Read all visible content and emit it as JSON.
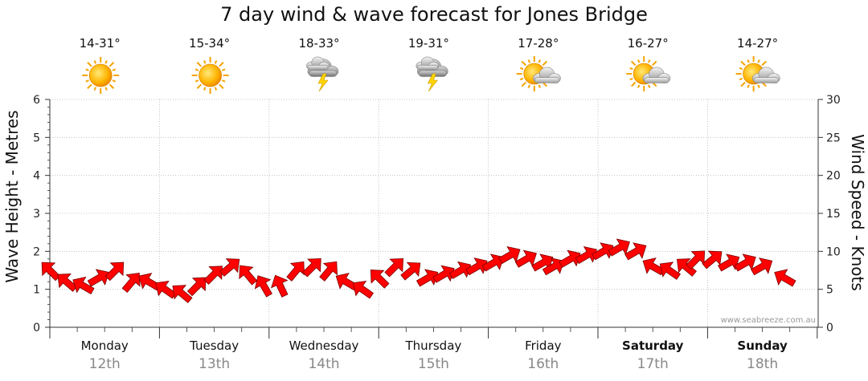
{
  "chart_data": {
    "type": "line",
    "title": "7 day wind & wave forecast for Jones Bridge",
    "ylabel": "Wave Height - Metres",
    "y2label": "Wind Speed - Knots",
    "ylim": [
      0,
      6
    ],
    "y2lim": [
      0,
      30
    ],
    "yticks": [
      "0",
      "1",
      "2",
      "3",
      "4",
      "5",
      "6"
    ],
    "y2ticks": [
      "0",
      "5",
      "10",
      "15",
      "20",
      "25",
      "30"
    ],
    "grid": true,
    "days": [
      {
        "name": "Monday",
        "date": "12th",
        "temp": "14-31°",
        "icon": "sun-icon",
        "bold": false
      },
      {
        "name": "Tuesday",
        "date": "13th",
        "temp": "15-34°",
        "icon": "sun-icon",
        "bold": false
      },
      {
        "name": "Wednesday",
        "date": "14th",
        "temp": "18-33°",
        "icon": "storm-icon",
        "bold": false
      },
      {
        "name": "Thursday",
        "date": "15th",
        "temp": "19-31°",
        "icon": "storm-icon",
        "bold": false
      },
      {
        "name": "Friday",
        "date": "16th",
        "temp": "17-28°",
        "icon": "partly-cloudy-icon",
        "bold": false
      },
      {
        "name": "Saturday",
        "date": "17th",
        "temp": "16-27°",
        "icon": "partly-cloudy-icon",
        "bold": true
      },
      {
        "name": "Sunday",
        "date": "18th",
        "temp": "14-27°",
        "icon": "partly-cloudy-icon",
        "bold": true
      }
    ],
    "series": [
      {
        "name": "Wind Speed (knots)",
        "axis": "right",
        "color": "#ff0000",
        "x_days": [
          0.0,
          0.15,
          0.3,
          0.45,
          0.6,
          0.75,
          0.9,
          1.05,
          1.2,
          1.35,
          1.5,
          1.65,
          1.8,
          1.95,
          2.1,
          2.25,
          2.4,
          2.55,
          2.7,
          2.85,
          3.0,
          3.15,
          3.3,
          3.45,
          3.6,
          3.75,
          3.9,
          4.05,
          4.2,
          4.35,
          4.5,
          4.6,
          4.75,
          4.9,
          5.05,
          5.2,
          5.35,
          5.5,
          5.65,
          5.8,
          5.9,
          6.05,
          6.2,
          6.35,
          6.5,
          6.7
        ],
        "values": [
          7.5,
          6.0,
          5.5,
          6.5,
          7.5,
          6.0,
          6.0,
          5.0,
          4.5,
          5.5,
          7.0,
          8.0,
          7.0,
          5.5,
          5.5,
          7.5,
          8.0,
          7.5,
          6.0,
          5.0,
          6.5,
          8.0,
          7.5,
          6.5,
          7.0,
          7.5,
          8.0,
          8.5,
          9.5,
          9.0,
          8.5,
          8.0,
          9.0,
          9.5,
          10.0,
          10.5,
          10.0,
          8.0,
          7.5,
          8.0,
          9.0,
          9.0,
          8.5,
          8.5,
          8.0,
          6.5
        ],
        "direction_deg": [
          315,
          310,
          300,
          60,
          45,
          40,
          300,
          305,
          310,
          45,
          45,
          50,
          320,
          330,
          335,
          40,
          45,
          40,
          300,
          305,
          315,
          45,
          50,
          60,
          60,
          60,
          60,
          60,
          60,
          60,
          60,
          60,
          60,
          60,
          60,
          60,
          60,
          300,
          305,
          310,
          45,
          50,
          60,
          60,
          60,
          300
        ]
      }
    ],
    "credit": "www.seabreeze.com.au"
  }
}
